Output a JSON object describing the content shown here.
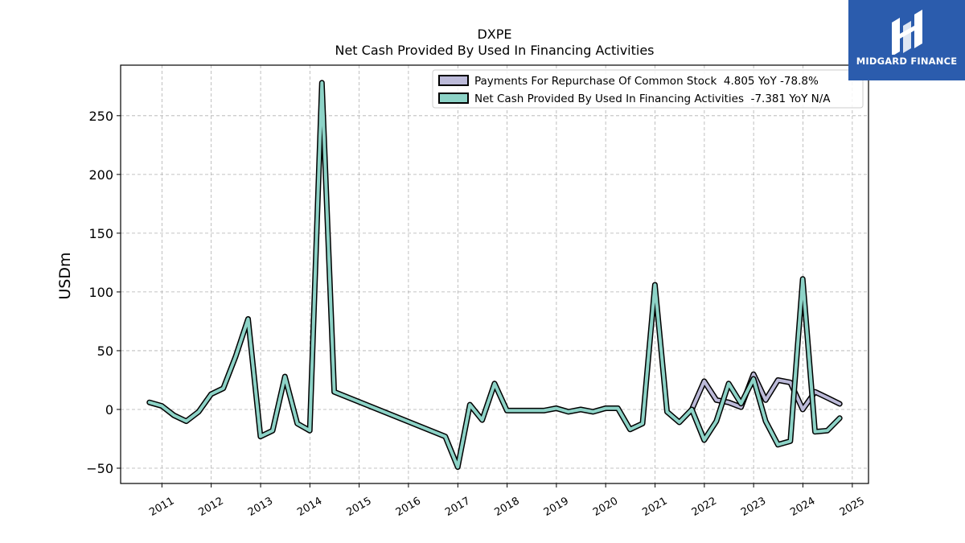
{
  "brand": {
    "name": "MIDGARD FINANCE",
    "color": "#2b5cad"
  },
  "chart_data": {
    "type": "line",
    "title": "DXPE",
    "subtitle": "Net Cash Provided By Used In Financing Activities",
    "ylabel": "USDm",
    "xlabel": "",
    "ylim": [
      -63,
      293
    ],
    "xlim": [
      "2010-03-01",
      "2025-05-01"
    ],
    "yticks": [
      -50,
      0,
      50,
      100,
      150,
      200,
      250
    ],
    "xticks": [
      "2011",
      "2012",
      "2013",
      "2014",
      "2015",
      "2016",
      "2017",
      "2018",
      "2019",
      "2020",
      "2021",
      "2022",
      "2023",
      "2024",
      "2025"
    ],
    "grid": true,
    "legend_position": "top-right",
    "legend": [
      "Payments For Repurchase Of Common Stock  4.805 YoY -78.8%",
      "Net Cash Provided By Used In Financing Activities  -7.381 YoY N/A"
    ],
    "series": [
      {
        "name": "Payments For Repurchase Of Common Stock",
        "color": "#bcbad9",
        "points": [
          [
            "2021-09-30",
            0
          ],
          [
            "2021-12-31",
            24
          ],
          [
            "2022-03-31",
            8
          ],
          [
            "2022-06-30",
            6
          ],
          [
            "2022-09-30",
            2
          ],
          [
            "2022-12-31",
            30
          ],
          [
            "2023-03-31",
            8
          ],
          [
            "2023-06-30",
            25
          ],
          [
            "2023-09-30",
            23
          ],
          [
            "2023-12-31",
            0
          ],
          [
            "2024-03-31",
            15
          ],
          [
            "2024-06-30",
            10
          ],
          [
            "2024-09-30",
            4.8
          ]
        ]
      },
      {
        "name": "Net Cash Provided By Used In Financing Activities",
        "color": "#8dd3c7",
        "points": [
          [
            "2010-09-30",
            6
          ],
          [
            "2010-12-31",
            3
          ],
          [
            "2011-03-31",
            -5
          ],
          [
            "2011-06-30",
            -10
          ],
          [
            "2011-09-30",
            -2
          ],
          [
            "2011-12-31",
            13
          ],
          [
            "2012-03-31",
            18
          ],
          [
            "2012-06-30",
            45
          ],
          [
            "2012-09-30",
            77
          ],
          [
            "2012-12-31",
            -23
          ],
          [
            "2013-03-31",
            -18
          ],
          [
            "2013-06-30",
            28
          ],
          [
            "2013-09-30",
            -12
          ],
          [
            "2013-12-31",
            -18
          ],
          [
            "2014-03-31",
            278
          ],
          [
            "2014-06-30",
            15
          ],
          [
            "2016-09-30",
            -23
          ],
          [
            "2016-12-31",
            -49
          ],
          [
            "2017-03-31",
            4
          ],
          [
            "2017-06-30",
            -9
          ],
          [
            "2017-09-30",
            22
          ],
          [
            "2017-12-31",
            -1
          ],
          [
            "2018-03-31",
            -1
          ],
          [
            "2018-06-30",
            -1
          ],
          [
            "2018-09-30",
            -1
          ],
          [
            "2018-12-31",
            1
          ],
          [
            "2019-03-31",
            -2
          ],
          [
            "2019-06-30",
            0
          ],
          [
            "2019-09-30",
            -2
          ],
          [
            "2019-12-31",
            1
          ],
          [
            "2020-03-31",
            1
          ],
          [
            "2020-06-30",
            -17
          ],
          [
            "2020-09-30",
            -12
          ],
          [
            "2020-12-31",
            106
          ],
          [
            "2021-03-31",
            -2
          ],
          [
            "2021-06-30",
            -11
          ],
          [
            "2021-09-30",
            0
          ],
          [
            "2021-12-31",
            -26
          ],
          [
            "2022-03-31",
            -10
          ],
          [
            "2022-06-30",
            22
          ],
          [
            "2022-09-30",
            5
          ],
          [
            "2022-12-31",
            26
          ],
          [
            "2023-03-31",
            -10
          ],
          [
            "2023-06-30",
            -30
          ],
          [
            "2023-09-30",
            -27
          ],
          [
            "2023-12-31",
            111
          ],
          [
            "2024-03-31",
            -19
          ],
          [
            "2024-06-30",
            -18
          ],
          [
            "2024-09-30",
            -7.4
          ]
        ]
      }
    ]
  }
}
